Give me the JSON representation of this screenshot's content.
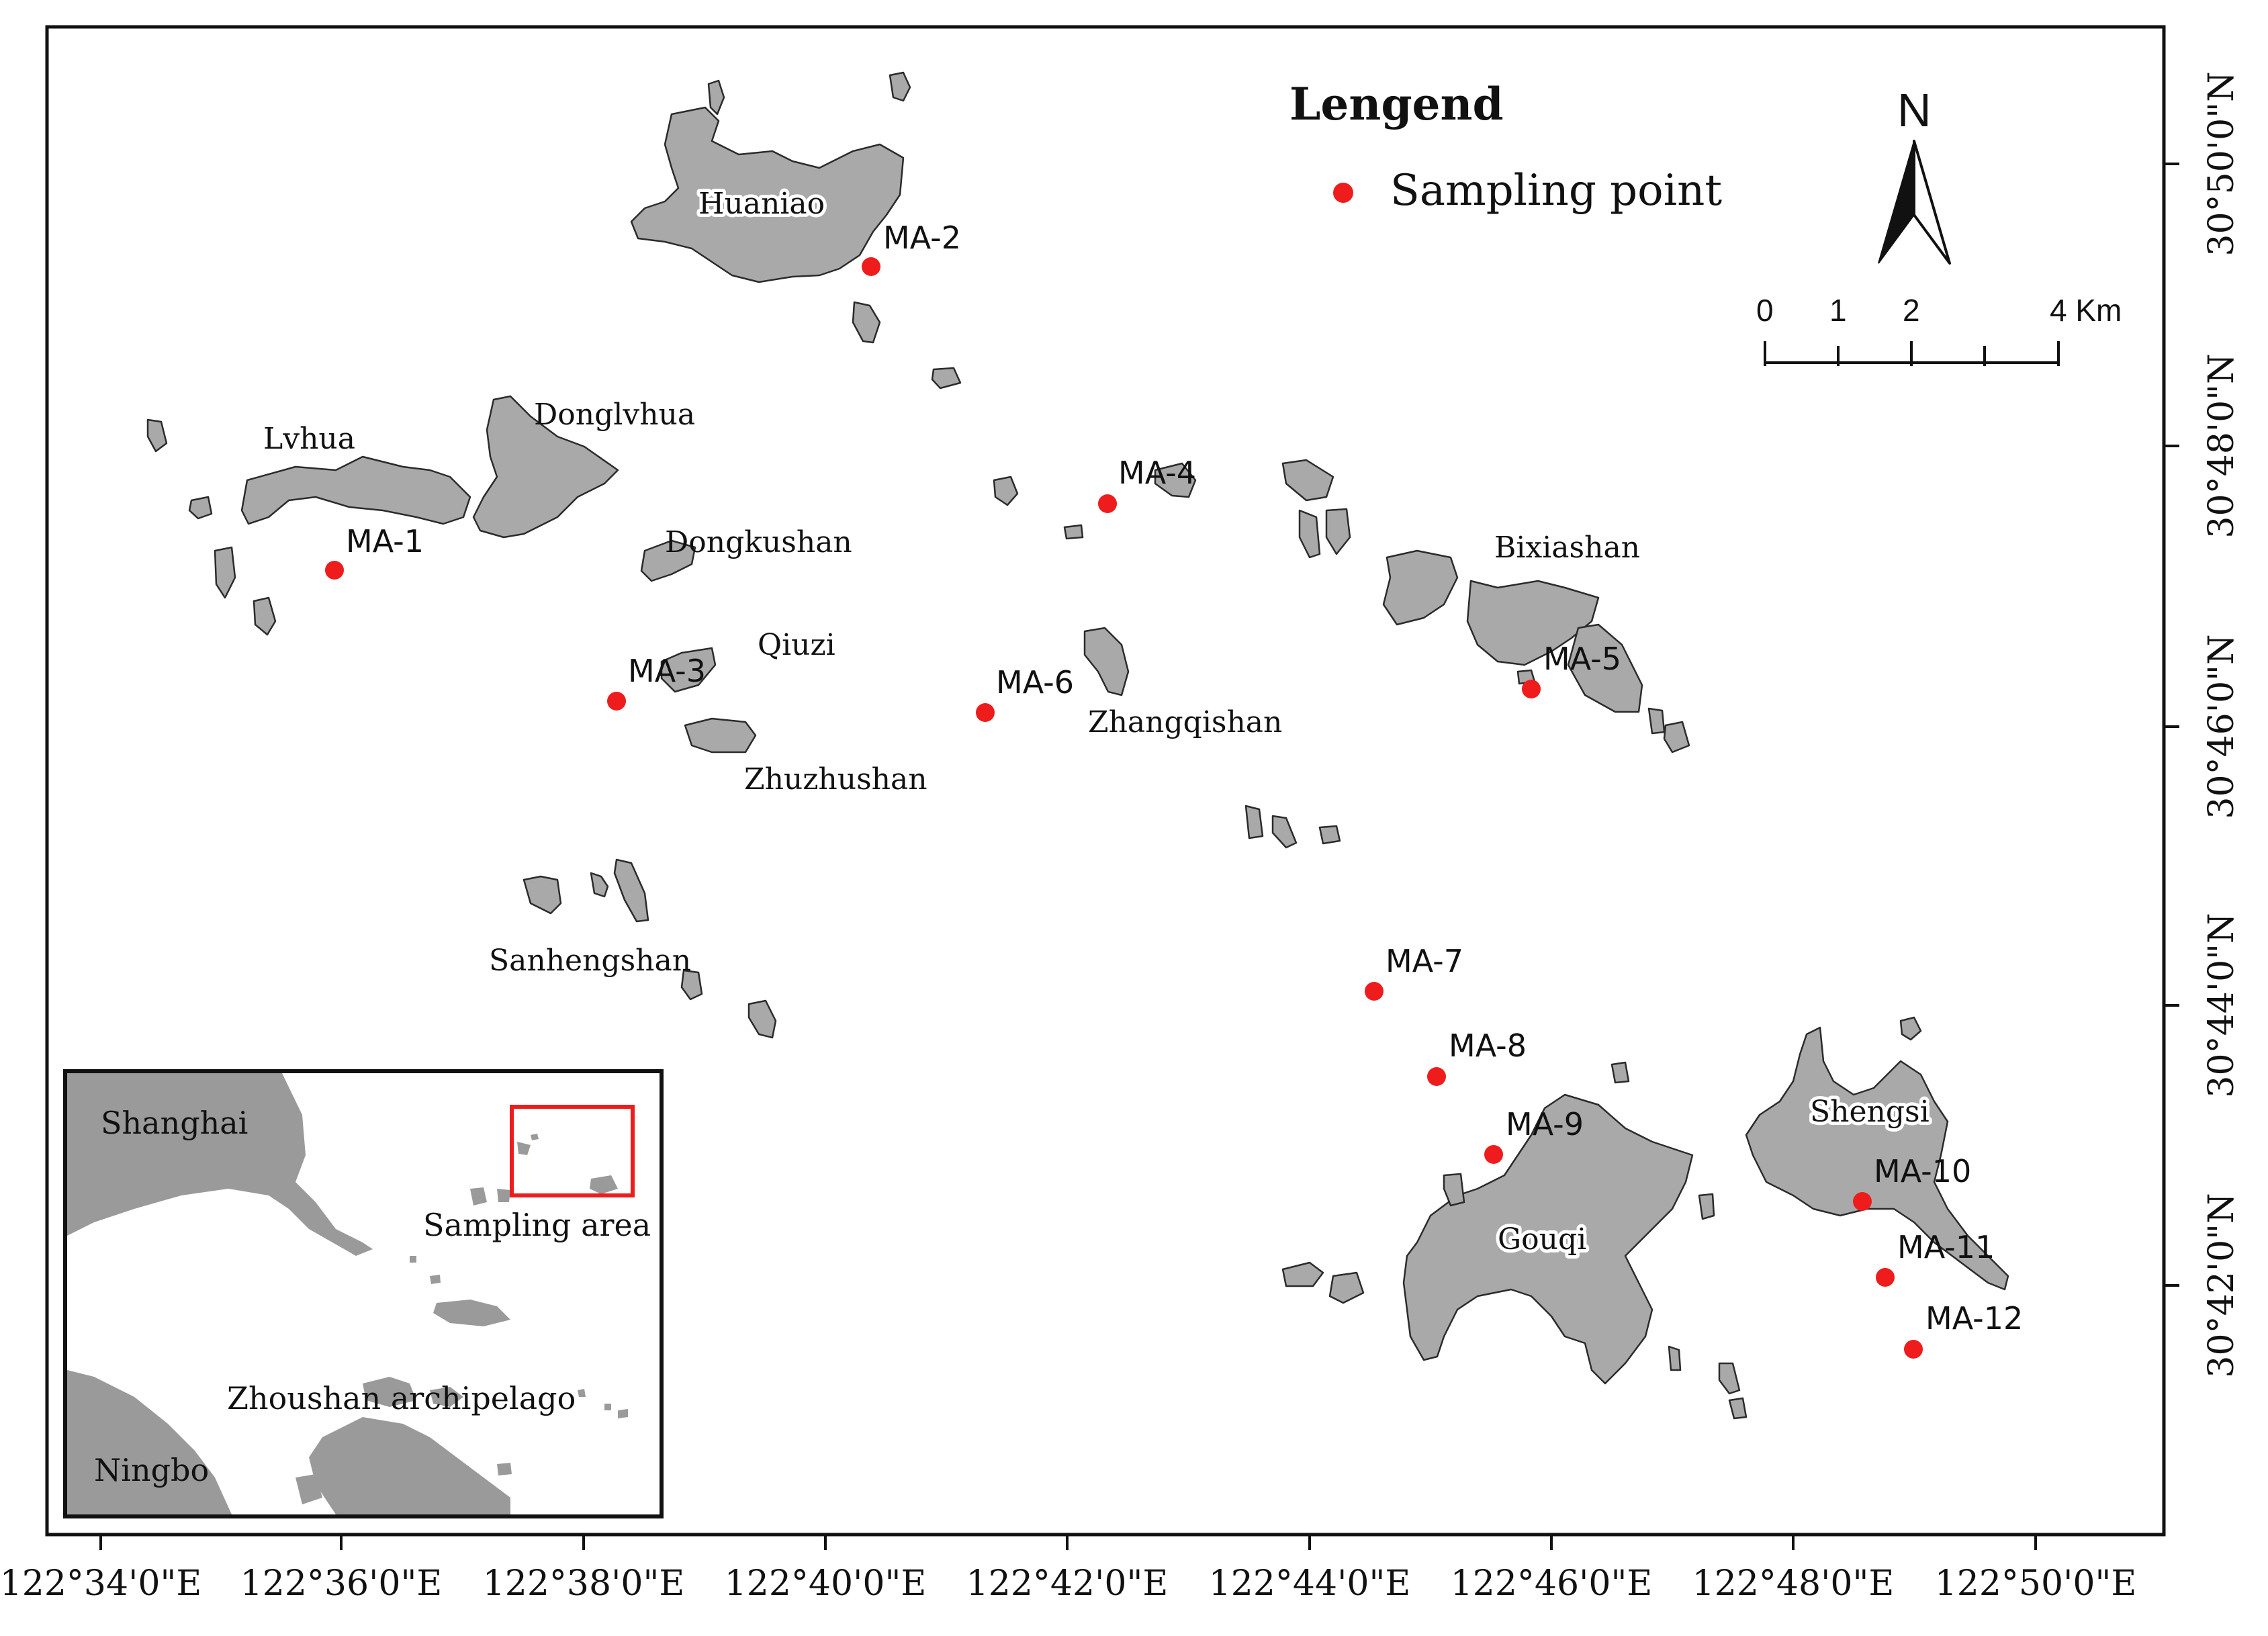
{
  "legend": {
    "title": "Lengend",
    "item_label": "Sampling point",
    "point_color": "#ee1c1c"
  },
  "north_arrow": {
    "label": "N"
  },
  "scale_bar": {
    "ticks": [
      "0",
      "1",
      "2",
      "4 Km"
    ]
  },
  "islands": {
    "huaniao": "Huaniao",
    "lvhua": "Lvhua",
    "donglvhua": "Donglvhua",
    "dongkushan": "Dongkushan",
    "qiuzi": "Qiuzi",
    "zhuzhushan": "Zhuzhushan",
    "zhangqishan": "Zhangqishan",
    "bixiashan": "Bixiashan",
    "sanhengshan": "Sanhengshan",
    "shengsi": "Shengsi",
    "gouqi": "Gouqi"
  },
  "sampling_points": [
    "MA-1",
    "MA-2",
    "MA-3",
    "MA-4",
    "MA-5",
    "MA-6",
    "MA-7",
    "MA-8",
    "MA-9",
    "MA-10",
    "MA-11",
    "MA-12"
  ],
  "axes": {
    "x_ticks": [
      "122°34'0\"E",
      "122°36'0\"E",
      "122°38'0\"E",
      "122°40'0\"E",
      "122°42'0\"E",
      "122°44'0\"E",
      "122°46'0\"E",
      "122°48'0\"E",
      "122°50'0\"E"
    ],
    "y_ticks": [
      "30°50'0\"N",
      "30°48'0\"N",
      "30°46'0\"N",
      "30°44'0\"N",
      "30°42'0\"N"
    ]
  },
  "inset": {
    "shanghai": "Shanghai",
    "sampling_area": "Sampling area",
    "zhoushan": "Zhoushan archipelago",
    "ningbo": "Ningbo"
  }
}
